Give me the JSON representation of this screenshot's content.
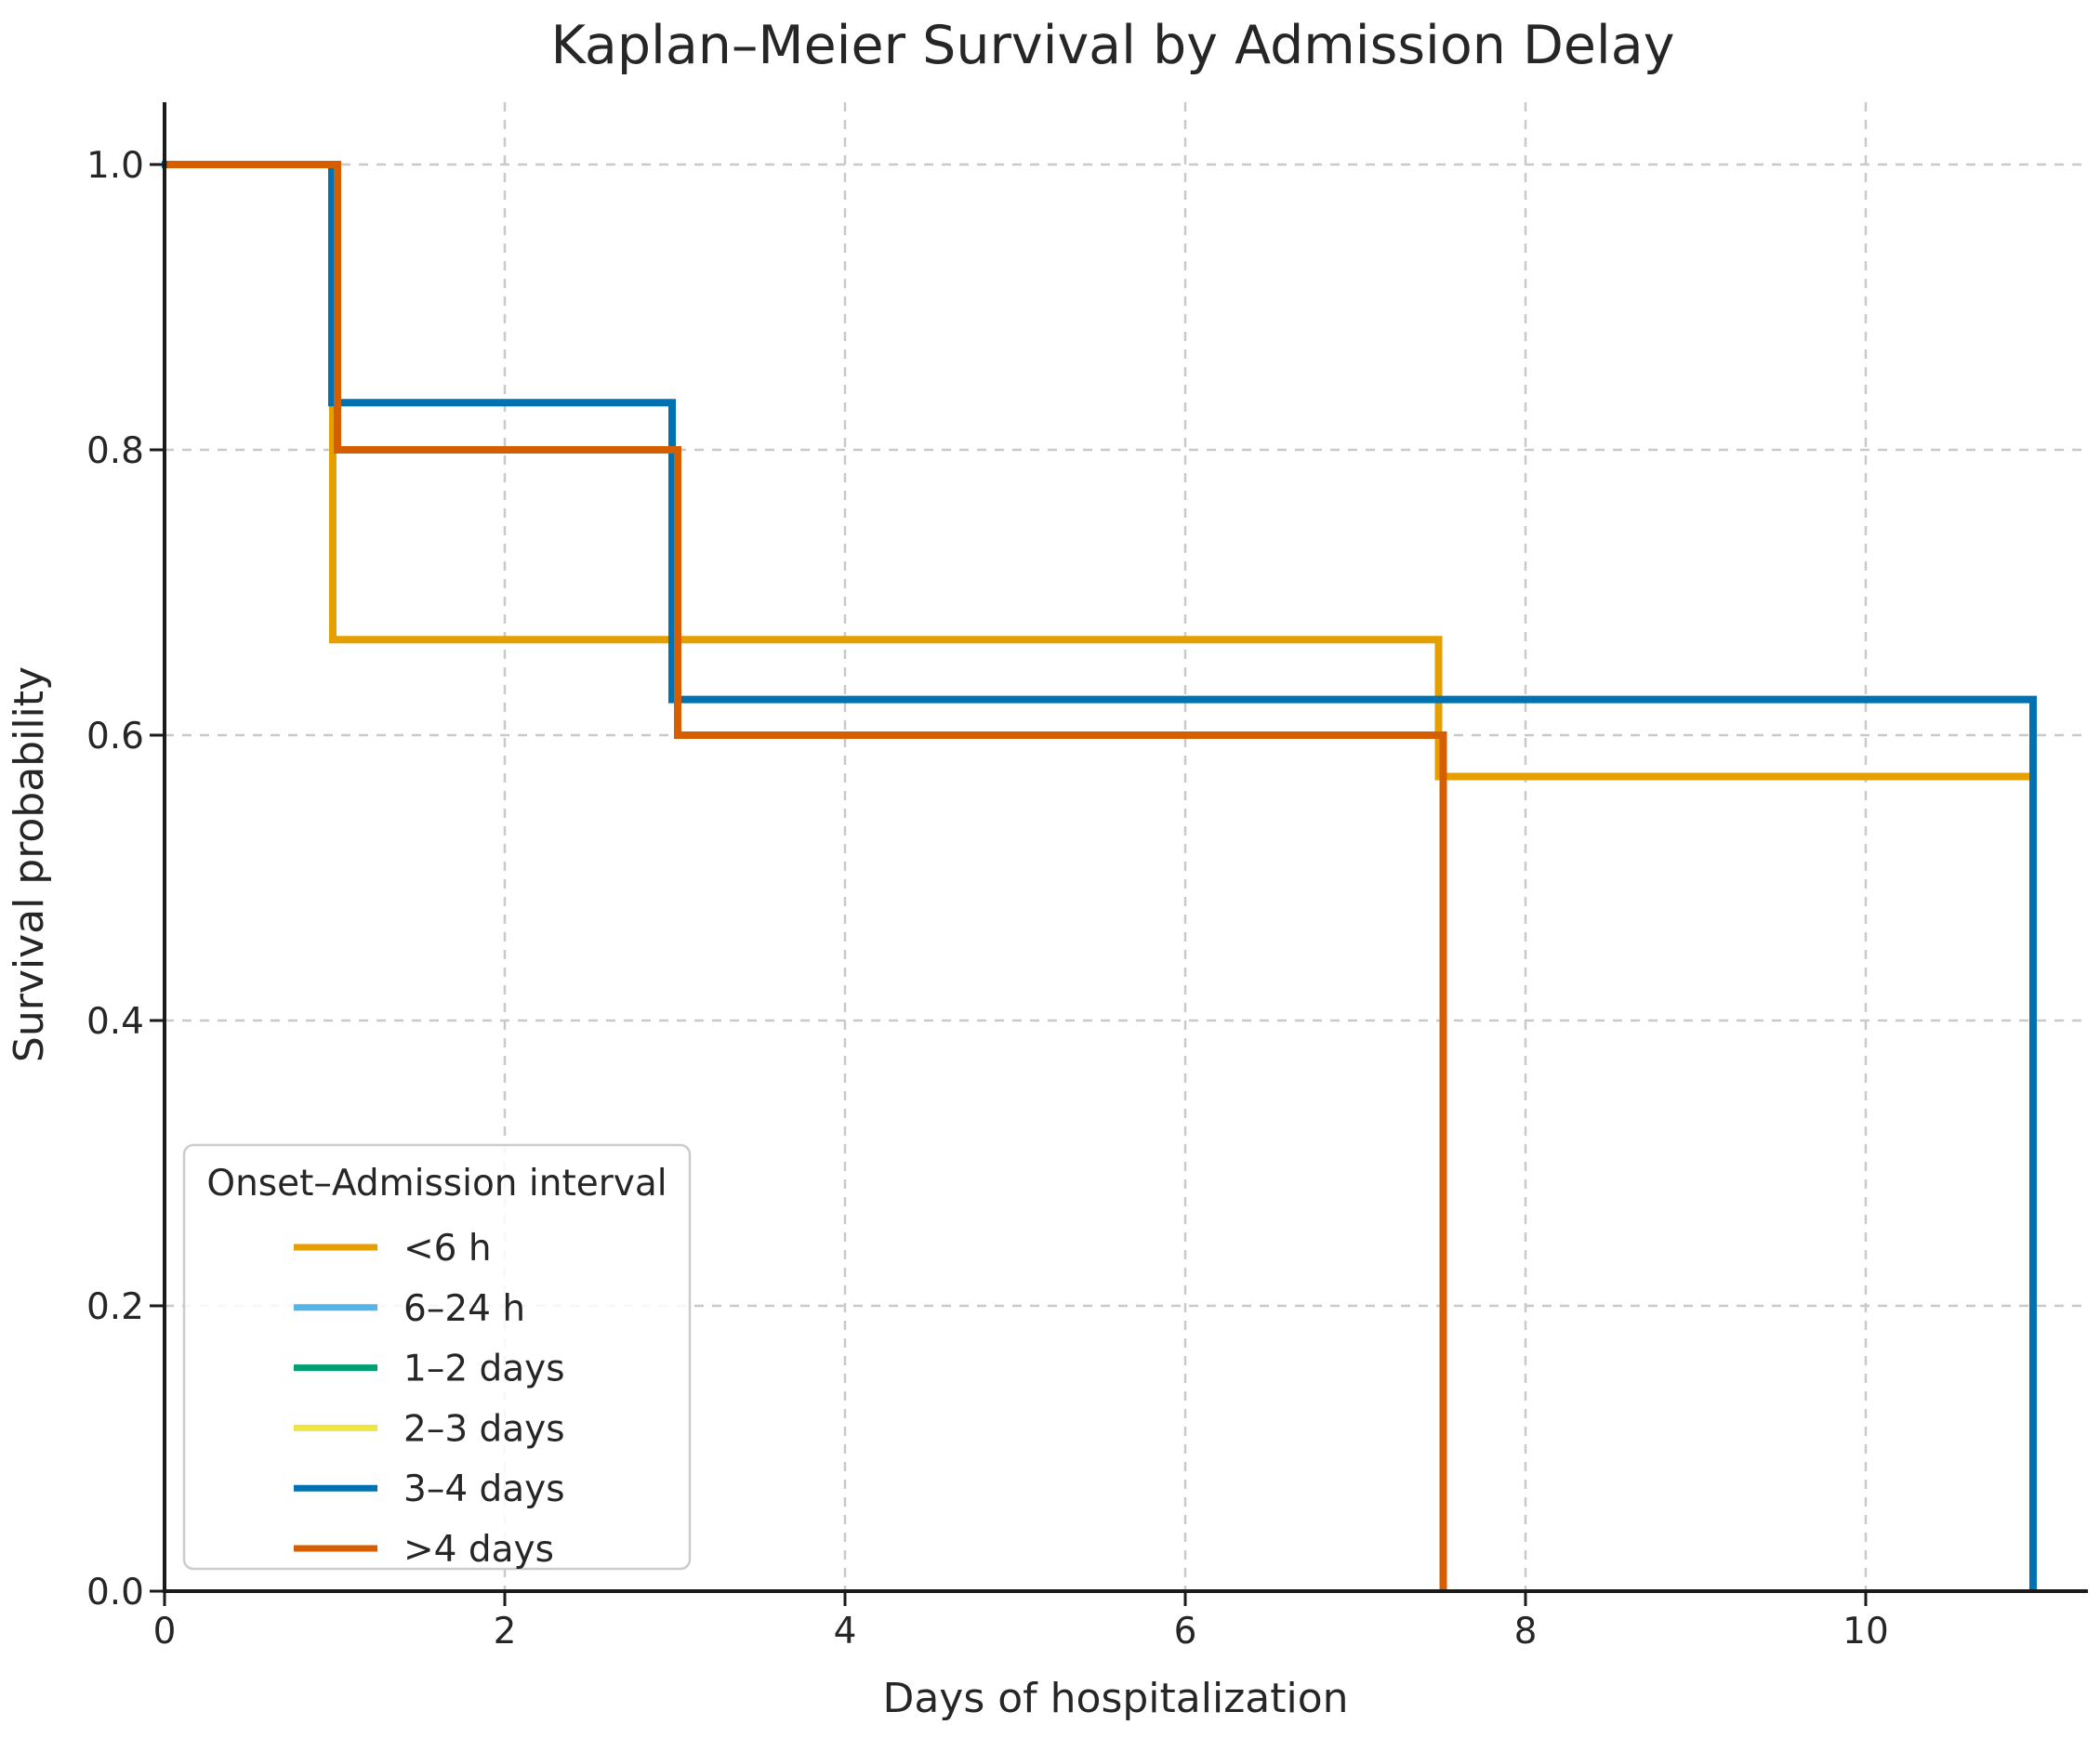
{
  "page": {
    "background": "#ffffff"
  },
  "chart_data": {
    "type": "line",
    "subtype": "kaplan-meier-step",
    "title": "Kaplan–Meier Survival by Admission Delay",
    "xlabel": "Days of hospitalization",
    "ylabel": "Survival probability",
    "x_ticks": [
      0,
      2,
      4,
      6,
      8,
      10
    ],
    "y_ticks": [
      0.0,
      0.2,
      0.4,
      0.6,
      0.8,
      1.0
    ],
    "y_tick_labels": [
      "0.0",
      "0.2",
      "0.4",
      "0.6",
      "0.8",
      "1.0"
    ],
    "xlim": [
      0,
      11.31
    ],
    "ylim": [
      0,
      1.044
    ],
    "grid": {
      "shown": true,
      "style": "dashed",
      "color": "#c9c9c9"
    },
    "colors": {
      "spine": "#1a1a1a",
      "text": "#262626",
      "grid": "#c9c9c9",
      "legend_border": "#cccccc",
      "legend_background": "#ffffff"
    },
    "legend": {
      "title": "Onset–Admission interval",
      "position": "lower left",
      "entries": [
        {
          "label": "<6 h",
          "color": "#E69F00"
        },
        {
          "label": "6–24 h",
          "color": "#56B4E9"
        },
        {
          "label": "1–2 days",
          "color": "#009E73"
        },
        {
          "label": "2–3 days",
          "color": "#F0E442"
        },
        {
          "label": "3–4 days",
          "color": "#0072B2"
        },
        {
          "label": ">4 days",
          "color": "#D55E00"
        }
      ]
    },
    "series": [
      {
        "name": "<6 h",
        "color": "#E69F00",
        "visible": true,
        "points": [
          [
            0,
            1.0
          ],
          [
            1,
            1.0
          ],
          [
            1,
            0.667
          ],
          [
            7.5,
            0.667
          ],
          [
            7.5,
            0.571
          ],
          [
            11,
            0.571
          ]
        ],
        "end_behavior": "ends at t=11 without dropping to 0 (censored)"
      },
      {
        "name": "6–24 h",
        "color": "#56B4E9",
        "visible": false,
        "points": [],
        "note": "legend entry only; curve hidden behind overlapping curves"
      },
      {
        "name": "1–2 days",
        "color": "#009E73",
        "visible": false,
        "points": [],
        "note": "legend entry only; curve hidden behind overlapping curves"
      },
      {
        "name": "2–3 days",
        "color": "#F0E442",
        "visible": false,
        "points": [],
        "note": "legend entry only; curve hidden behind overlapping curves"
      },
      {
        "name": "3–4 days",
        "color": "#0072B2",
        "visible": true,
        "points": [
          [
            0,
            1.0
          ],
          [
            1,
            1.0
          ],
          [
            1,
            0.833
          ],
          [
            3,
            0.833
          ],
          [
            3,
            0.625
          ],
          [
            11,
            0.625
          ],
          [
            11,
            0
          ]
        ],
        "end_behavior": "drops to 0 at t=11"
      },
      {
        "name": ">4 days",
        "color": "#D55E00",
        "visible": true,
        "points": [
          [
            0,
            1.0
          ],
          [
            1,
            1.0
          ],
          [
            1,
            0.8
          ],
          [
            3,
            0.8
          ],
          [
            3,
            0.6
          ],
          [
            7.5,
            0.6
          ],
          [
            7.5,
            0
          ]
        ],
        "end_behavior": "drops to 0 at t=7.5"
      }
    ],
    "draw_order": [
      "<6 h",
      "3–4 days",
      ">4 days"
    ]
  }
}
